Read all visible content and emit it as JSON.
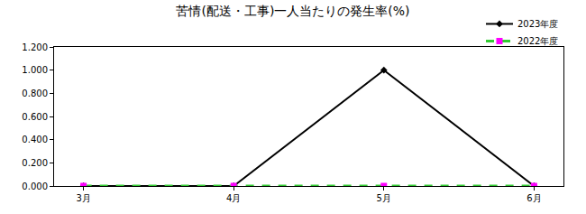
{
  "chart_data": {
    "type": "line",
    "title": "苦情(配送・工事)一人当たりの発生率(%)",
    "categories": [
      "3月",
      "4月",
      "5月",
      "6月"
    ],
    "series": [
      {
        "name": "2023年度",
        "color": "#000000",
        "marker": "diamond",
        "line_style": "solid",
        "values": [
          0,
          0,
          1.0,
          0
        ]
      },
      {
        "name": "2022年度",
        "color": "#33cc33",
        "marker": "square",
        "line_style": "dashed",
        "values": [
          0,
          0,
          0,
          0
        ]
      }
    ],
    "ylim": [
      0,
      1.2
    ],
    "yticks": [
      {
        "value": 0,
        "label": "0.000"
      },
      {
        "value": 0.2,
        "label": "0.200"
      },
      {
        "value": 0.4,
        "label": "0.400"
      },
      {
        "value": 0.6,
        "label": "0.600"
      },
      {
        "value": 0.8,
        "label": "0.800"
      },
      {
        "value": 1.0,
        "label": "1.000"
      },
      {
        "value": 1.2,
        "label": "1.200"
      }
    ],
    "grid": false,
    "legend": "top right"
  }
}
